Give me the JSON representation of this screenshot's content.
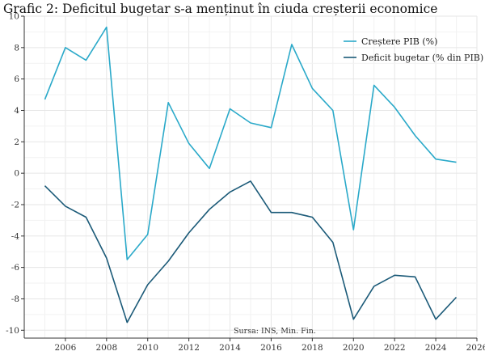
{
  "chart_data": {
    "type": "line",
    "title": "Grafic 2: Deficitul bugetar s-a menținut în ciuda creșterii economice",
    "source": "Sursa: INS, Min. Fin.",
    "xlabel": "",
    "ylabel": "",
    "xlim": [
      2004,
      2026
    ],
    "ylim": [
      -10.5,
      10
    ],
    "xticks": [
      2006,
      2008,
      2010,
      2012,
      2014,
      2016,
      2018,
      2020,
      2022,
      2024,
      2026
    ],
    "yticks": [
      -10,
      -8,
      -6,
      -4,
      -2,
      0,
      2,
      4,
      6,
      8,
      10
    ],
    "grid": true,
    "legend_position": "top-right",
    "x": [
      2005,
      2006,
      2007,
      2008,
      2009,
      2010,
      2011,
      2012,
      2013,
      2014,
      2015,
      2016,
      2017,
      2018,
      2019,
      2020,
      2021,
      2022,
      2023,
      2024,
      2025
    ],
    "series": [
      {
        "name": "Creștere PIB (%)",
        "color": "#2aa9c9",
        "values": [
          4.7,
          8.0,
          7.2,
          9.3,
          -5.5,
          -3.9,
          4.5,
          1.9,
          0.3,
          4.1,
          3.2,
          2.9,
          8.2,
          5.4,
          4.0,
          -3.6,
          5.6,
          4.2,
          2.4,
          0.9,
          0.7
        ]
      },
      {
        "name": "Deficit bugetar (% din PIB)",
        "color": "#1b5a78",
        "values": [
          -0.8,
          -2.1,
          -2.8,
          -5.4,
          -9.5,
          -7.1,
          -5.6,
          -3.8,
          -2.3,
          -1.2,
          -0.5,
          -2.5,
          -2.5,
          -2.8,
          -4.4,
          -9.3,
          -7.2,
          -6.5,
          -6.6,
          -9.3,
          -7.9
        ]
      }
    ]
  }
}
